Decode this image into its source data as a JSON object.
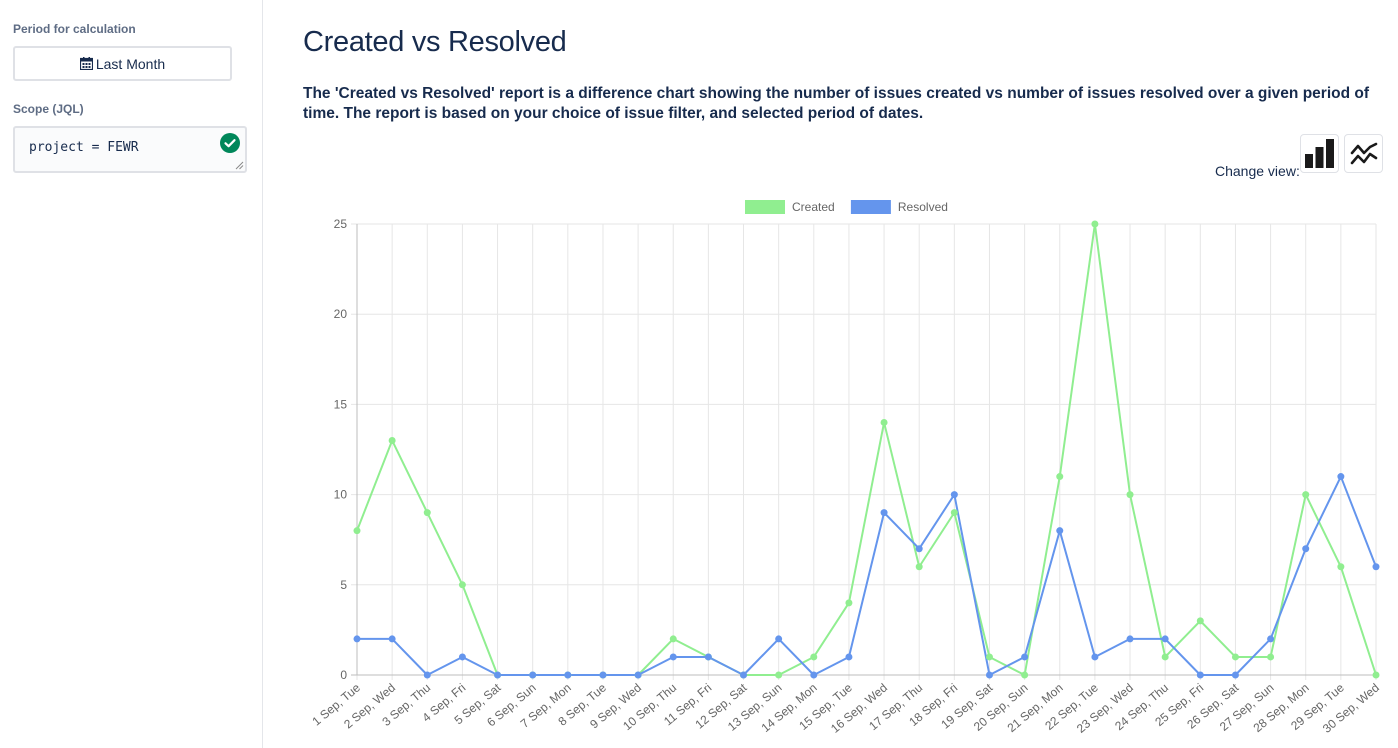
{
  "sidebar": {
    "period_label": "Period for calculation",
    "period_button": "Last Month",
    "scope_label": "Scope (JQL)",
    "jql_value": "project = FEWR"
  },
  "main": {
    "title": "Created vs Resolved",
    "description": "The 'Created vs Resolved' report is a difference chart showing the number of issues created vs number of issues resolved over a given period of time. The report is based on your choice of issue filter, and selected period of dates.",
    "change_view_label": "Change view:"
  },
  "icons": {
    "calendar": "calendar-icon",
    "valid": "check-circle-icon",
    "bar_view": "bar-chart-icon",
    "line_view": "line-chart-icon"
  },
  "colors": {
    "created": "#90ee90",
    "resolved": "#6495ed",
    "valid": "#00875a"
  },
  "chart_data": {
    "type": "line",
    "categories": [
      "1 Sep, Tue",
      "2 Sep, Wed",
      "3 Sep, Thu",
      "4 Sep, Fri",
      "5 Sep, Sat",
      "6 Sep, Sun",
      "7 Sep, Mon",
      "8 Sep, Tue",
      "9 Sep, Wed",
      "10 Sep, Thu",
      "11 Sep, Fri",
      "12 Sep, Sat",
      "13 Sep, Sun",
      "14 Sep, Mon",
      "15 Sep, Tue",
      "16 Sep, Wed",
      "17 Sep, Thu",
      "18 Sep, Fri",
      "19 Sep, Sat",
      "20 Sep, Sun",
      "21 Sep, Mon",
      "22 Sep, Tue",
      "23 Sep, Wed",
      "24 Sep, Thu",
      "25 Sep, Fri",
      "26 Sep, Sat",
      "27 Sep, Sun",
      "28 Sep, Mon",
      "29 Sep, Tue",
      "30 Sep, Wed"
    ],
    "series": [
      {
        "name": "Created",
        "color": "#90ee90",
        "values": [
          8,
          13,
          9,
          5,
          0,
          0,
          0,
          0,
          0,
          2,
          1,
          0,
          0,
          1,
          4,
          14,
          6,
          9,
          1,
          0,
          11,
          25,
          10,
          1,
          3,
          1,
          1,
          10,
          6,
          0
        ]
      },
      {
        "name": "Resolved",
        "color": "#6495ed",
        "values": [
          2,
          2,
          0,
          1,
          0,
          0,
          0,
          0,
          0,
          1,
          1,
          0,
          2,
          0,
          1,
          9,
          7,
          10,
          0,
          1,
          8,
          1,
          2,
          2,
          0,
          0,
          2,
          7,
          11,
          6
        ]
      }
    ],
    "ylim": [
      0,
      25
    ],
    "yticks": [
      0,
      5,
      10,
      15,
      20,
      25
    ],
    "grid": true,
    "legend": "top-center"
  }
}
